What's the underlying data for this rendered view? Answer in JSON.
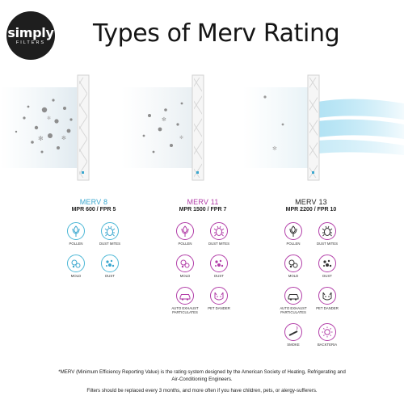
{
  "brand": {
    "name": "simply",
    "tagline": "FILTERS"
  },
  "headline": "Types of Merv Rating",
  "colors": {
    "merv8": "#3aa7cf",
    "merv11": "#b23da8",
    "merv13": "#222222",
    "air": "#6ec9ea",
    "dust": "#8d8d8d"
  },
  "ratings": [
    {
      "name": "MERV 8",
      "sub": "MPR 600 / FPR 5",
      "items": [
        {
          "label": "POLLEN",
          "icon": "flower-icon"
        },
        {
          "label": "DUST MITES",
          "icon": "bug-icon"
        },
        {
          "label": "MOLD",
          "icon": "spores-icon"
        },
        {
          "label": "DUST",
          "icon": "particles-icon"
        }
      ]
    },
    {
      "name": "MERV 11",
      "sub": "MPR 1500 / FPR 7",
      "items": [
        {
          "label": "POLLEN",
          "icon": "flower-icon"
        },
        {
          "label": "DUST MITES",
          "icon": "bug-icon"
        },
        {
          "label": "MOLD",
          "icon": "spores-icon"
        },
        {
          "label": "DUST",
          "icon": "particles-icon"
        },
        {
          "label": "AUTO EXHAUST PARTICULATES",
          "icon": "car-icon"
        },
        {
          "label": "PET DANDER",
          "icon": "cat-icon"
        }
      ]
    },
    {
      "name": "MERV 13",
      "sub": "MPR 2200 / FPR 10",
      "items": [
        {
          "label": "POLLEN",
          "icon": "flower-icon"
        },
        {
          "label": "DUST MITES",
          "icon": "bug-icon"
        },
        {
          "label": "MOLD",
          "icon": "spores-icon"
        },
        {
          "label": "DUST",
          "icon": "particles-icon"
        },
        {
          "label": "AUTO EXHAUST PARTICULATES",
          "icon": "car-icon"
        },
        {
          "label": "PET DANDER",
          "icon": "cat-icon"
        },
        {
          "label": "SMOKE",
          "icon": "cigarette-icon"
        },
        {
          "label": "BACKTERIA",
          "icon": "bacteria-icon"
        }
      ]
    }
  ],
  "footnote": "*MERV (Minimum Efficiency Reporting Value) is the rating system designed by the American Society of Heating, Refrigerating and Air-Conditioning Engineers.",
  "footnote2": "Filters should be replaced every 3 months, and more often if you have children, pets, or alergy-sufferers."
}
